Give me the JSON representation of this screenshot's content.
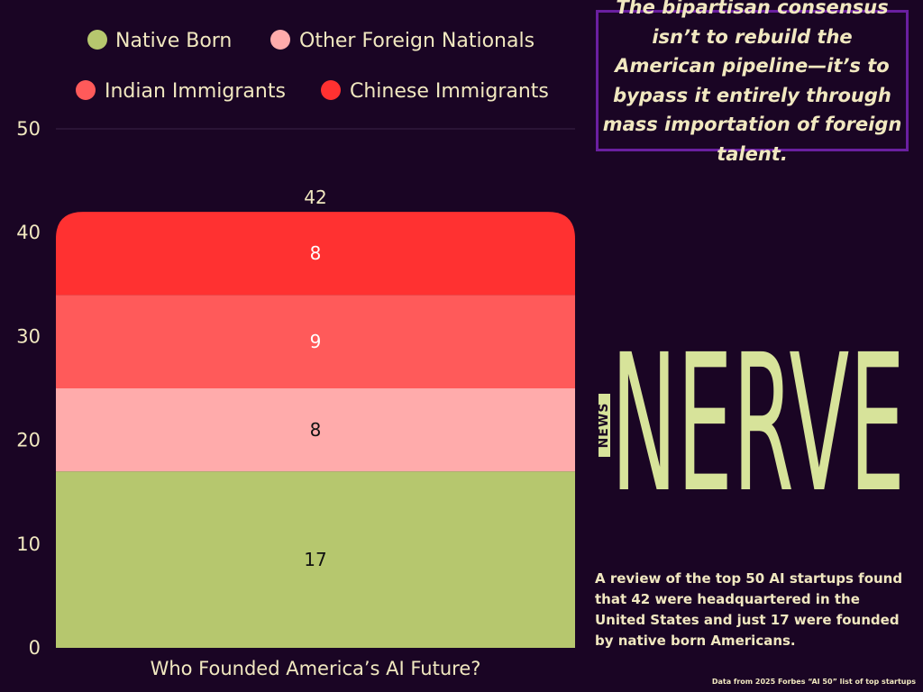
{
  "colors": {
    "background": "#1a0524",
    "text": "#f1e8c0",
    "accent_border": "#6a1fa0",
    "logo": "#d7e39a"
  },
  "chart_data": {
    "type": "bar",
    "stacked": true,
    "categories": [
      "Who Founded America’s AI Future?"
    ],
    "series": [
      {
        "name": "Native Born",
        "values": [
          17
        ],
        "color": "#b6c76e",
        "label_color": "#111111"
      },
      {
        "name": "Other Foreign Nationals",
        "values": [
          8
        ],
        "color": "#ffabab",
        "label_color": "#111111"
      },
      {
        "name": "Indian Immigrants",
        "values": [
          9
        ],
        "color": "#ff5a5a",
        "label_color": "#ffffff"
      },
      {
        "name": "Chinese Immigrants",
        "values": [
          8
        ],
        "color": "#ff3131",
        "label_color": "#ffffff"
      }
    ],
    "total_labels": [
      "42"
    ],
    "ylim": [
      0,
      50
    ],
    "yticks": [
      0,
      10,
      20,
      30,
      40,
      50
    ],
    "grid": false,
    "legend_position": "top"
  },
  "quote": "The bipartisan consensus isn’t to rebuild the American pipeline—it’s to bypass it entirely through mass importation of foreign talent.",
  "logo": {
    "small": "NEWS",
    "word": "NERVE"
  },
  "description": "A review of the top 50 AI startups found that 42 were headquartered in the United States and just 17 were founded by native born Americans.",
  "source": "Data from 2025 Forbes “AI 50” list of top startups"
}
